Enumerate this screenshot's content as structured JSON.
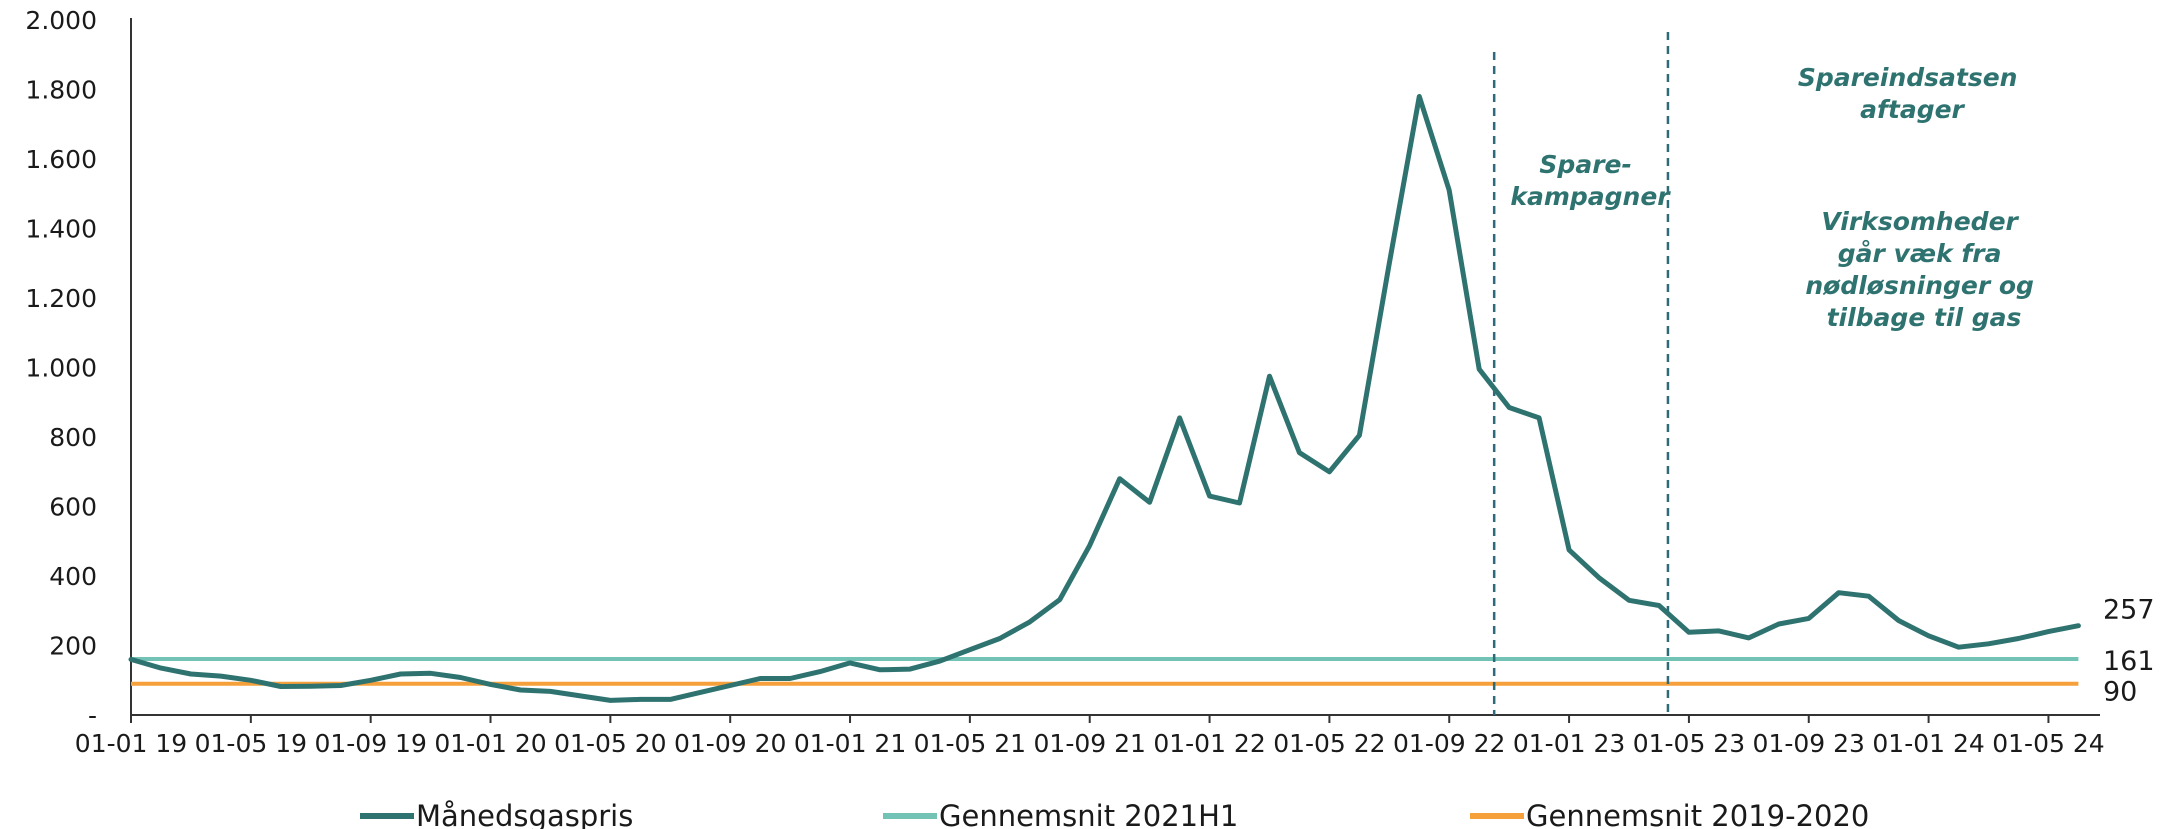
{
  "chart_data": {
    "type": "line",
    "y_ticks": [
      "2.000",
      "1.800",
      "1.600",
      "1.400",
      "1.200",
      "1.000",
      "800",
      "600",
      "400",
      "200",
      "-"
    ],
    "y_tick_values": [
      2000,
      1800,
      1600,
      1400,
      1200,
      1000,
      800,
      600,
      400,
      200,
      0
    ],
    "ylim": [
      0,
      2000
    ],
    "x_ticks": [
      {
        "label": "01-01 19",
        "month": 0
      },
      {
        "label": "01-05 19",
        "month": 4
      },
      {
        "label": "01-09 19",
        "month": 8
      },
      {
        "label": "01-01 20",
        "month": 12
      },
      {
        "label": "01-05 20",
        "month": 16
      },
      {
        "label": "01-09 20",
        "month": 20
      },
      {
        "label": "01-01 21",
        "month": 24
      },
      {
        "label": "01-05 21",
        "month": 28
      },
      {
        "label": "01-09 21",
        "month": 32
      },
      {
        "label": "01-01 22",
        "month": 36
      },
      {
        "label": "01-05 22",
        "month": 40
      },
      {
        "label": "01-09 22",
        "month": 44
      },
      {
        "label": "01-01 23",
        "month": 48
      },
      {
        "label": "01-05 23",
        "month": 52
      },
      {
        "label": "01-09 23",
        "month": 56
      },
      {
        "label": "01-01 24",
        "month": 60
      },
      {
        "label": "01-05 24",
        "month": 64
      }
    ],
    "xlim": [
      0,
      66
    ],
    "series": [
      {
        "name": "Månedsgaspris",
        "color": "#2e7370",
        "values": [
          160,
          135,
          118,
          112,
          100,
          82,
          83,
          85,
          100,
          118,
          120,
          108,
          88,
          72,
          68,
          55,
          42,
          45,
          45,
          65,
          85,
          105,
          105,
          125,
          150,
          130,
          132,
          155,
          188,
          220,
          268,
          332,
          488,
          680,
          612,
          855,
          630,
          610,
          975,
          755,
          700,
          805,
          1300,
          1780,
          1510,
          995,
          885,
          855,
          475,
          395,
          330,
          315,
          238,
          242,
          222,
          262,
          278,
          352,
          342,
          272,
          228,
          195,
          205,
          220,
          240,
          257
        ]
      },
      {
        "name": "Gennemsnit 2021H1",
        "color": "#72c2b6",
        "value": 161
      },
      {
        "name": "Gennemsnit 2019-2020",
        "color": "#f5a03a",
        "value": 90
      }
    ],
    "end_labels": [
      {
        "text": "257",
        "value": 257
      },
      {
        "text": "161",
        "value": 161
      },
      {
        "text": "90",
        "value": 90
      }
    ],
    "vertical_lines": [
      {
        "month": 45.5,
        "color": "#2e6b7a"
      },
      {
        "month": 51.3,
        "color": "#2e6b7a"
      }
    ],
    "annotations": [
      {
        "id": "spare",
        "lines": [
          "Spare-",
          "kampagner"
        ]
      },
      {
        "id": "aftager",
        "lines": [
          "Spareindsatsen",
          "aftager"
        ]
      },
      {
        "id": "virksomheder",
        "lines": [
          "Virksomheder",
          "går væk fra",
          "nødløsninger og",
          "tilbage til gas"
        ]
      }
    ],
    "legend": [
      "Månedsgaspris",
      "Gennemsnit 2021H1",
      "Gennemsnit 2019-2020"
    ],
    "legend_position": "bottom",
    "grid": false
  }
}
